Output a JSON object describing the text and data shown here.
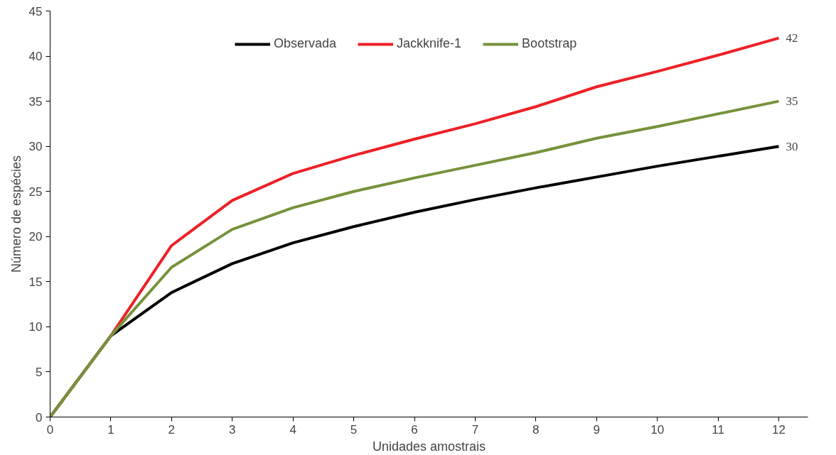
{
  "chart_data": {
    "type": "line",
    "xlabel": "Unidades amostrais",
    "ylabel": "Número de espécies",
    "x": [
      0,
      1,
      2,
      3,
      4,
      5,
      6,
      7,
      8,
      9,
      10,
      11,
      12
    ],
    "series": [
      {
        "name": "Observada",
        "color": "#000000",
        "values": [
          0,
          9,
          13.8,
          17,
          19.3,
          21.1,
          22.7,
          24.1,
          25.4,
          26.6,
          27.8,
          28.9,
          30
        ],
        "value_labels": [
          null,
          null,
          null,
          null,
          null,
          null,
          null,
          null,
          null,
          null,
          null,
          null,
          "30"
        ]
      },
      {
        "name": "Jackknife-1",
        "color": "#ee2027",
        "values": [
          0,
          9,
          19,
          24,
          27,
          29,
          30.8,
          32.5,
          34.4,
          36.6,
          38.3,
          40.1,
          42
        ],
        "value_labels": [
          null,
          null,
          null,
          null,
          null,
          null,
          null,
          null,
          null,
          null,
          null,
          null,
          "42"
        ]
      },
      {
        "name": "Bootstrap",
        "color": "#76923c",
        "values": [
          0,
          9,
          16.6,
          20.8,
          23.2,
          25,
          26.5,
          27.9,
          29.3,
          30.9,
          32.2,
          33.6,
          35
        ],
        "value_labels": [
          null,
          null,
          null,
          null,
          null,
          null,
          null,
          null,
          null,
          null,
          null,
          null,
          "35"
        ]
      }
    ],
    "xlim": [
      0,
      12.48
    ],
    "ylim": [
      0,
      45
    ],
    "xticks": [
      0,
      1,
      2,
      3,
      4,
      5,
      6,
      7,
      8,
      9,
      10,
      11,
      12
    ],
    "yticks": [
      0,
      5,
      10,
      15,
      20,
      25,
      30,
      35,
      40,
      45
    ],
    "grid": false,
    "legend": "top",
    "marker": "none",
    "line_style": "solid"
  }
}
